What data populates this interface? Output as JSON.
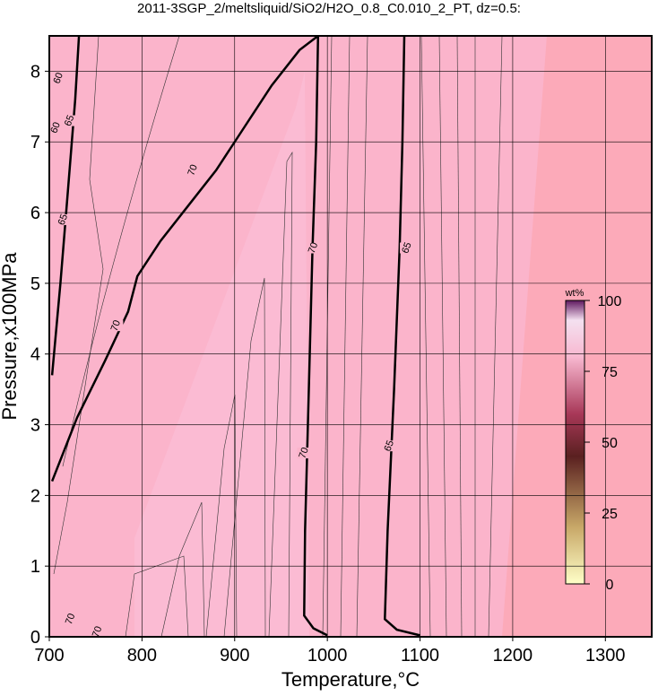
{
  "chart_data": {
    "type": "contour",
    "title": "2011-3SGP_2/meltsliquid/SiO2/H2O_0.8_C0.010_2_PT, dz=0.5:",
    "x_label": "Temperature,°C",
    "y_label": "Pressure,x100MPa",
    "xlim": [
      700,
      1350
    ],
    "ylim": [
      0,
      8.5
    ],
    "xticks": [
      700,
      800,
      900,
      1000,
      1100,
      1200,
      1300
    ],
    "yticks": [
      0,
      1,
      2,
      3,
      4,
      5,
      6,
      7,
      8
    ],
    "grid": true,
    "colorbar": {
      "label": "wt%",
      "lim": [
        0,
        100
      ],
      "ticks": [
        0,
        25,
        50,
        75,
        100
      ]
    },
    "contours": [
      {
        "level": 70,
        "points": [
          [
            703,
            2.2
          ],
          [
            730,
            3.1
          ],
          [
            760,
            3.9
          ],
          [
            785,
            4.6
          ],
          [
            795,
            5.1
          ],
          [
            820,
            5.6
          ],
          [
            850,
            6.1
          ],
          [
            880,
            6.6
          ],
          [
            910,
            7.2
          ],
          [
            940,
            7.8
          ],
          [
            970,
            8.3
          ],
          [
            990,
            8.5
          ]
        ]
      },
      {
        "level": 70,
        "points": [
          [
            990,
            8.5
          ],
          [
            988,
            7
          ],
          [
            984,
            5.5
          ],
          [
            980,
            3.5
          ],
          [
            976,
            1.5
          ],
          [
            975,
            0.3
          ],
          [
            985,
            0.12
          ],
          [
            1000,
            0.02
          ]
        ]
      },
      {
        "level": 65,
        "points": [
          [
            1083,
            8.5
          ],
          [
            1081,
            7
          ],
          [
            1078,
            5.5
          ],
          [
            1072,
            3.5
          ],
          [
            1065,
            1.5
          ],
          [
            1062,
            0.25
          ],
          [
            1075,
            0.1
          ],
          [
            1100,
            0.02
          ]
        ]
      },
      {
        "level": 65,
        "points": [
          [
            703,
            3.7
          ],
          [
            712,
            5
          ],
          [
            720,
            6.3
          ],
          [
            728,
            7.6
          ],
          [
            732,
            8.5
          ]
        ]
      }
    ],
    "contour_labels": [
      {
        "value": 70,
        "x": 855,
        "y": 6.6
      },
      {
        "value": 70,
        "x": 772,
        "y": 4.4
      },
      {
        "value": 70,
        "x": 985,
        "y": 5.5
      },
      {
        "value": 65,
        "x": 1086,
        "y": 5.5
      },
      {
        "value": 70,
        "x": 975,
        "y": 2.6
      },
      {
        "value": 65,
        "x": 1067,
        "y": 2.7
      },
      {
        "value": 65,
        "x": 715,
        "y": 5.9
      },
      {
        "value": 65,
        "x": 722,
        "y": 7.3
      },
      {
        "value": 60,
        "x": 707,
        "y": 7.2
      },
      {
        "value": 60,
        "x": 710,
        "y": 7.9
      },
      {
        "value": 70,
        "x": 723,
        "y": 0.25
      },
      {
        "value": 70,
        "x": 752,
        "y": 0.07
      }
    ]
  }
}
